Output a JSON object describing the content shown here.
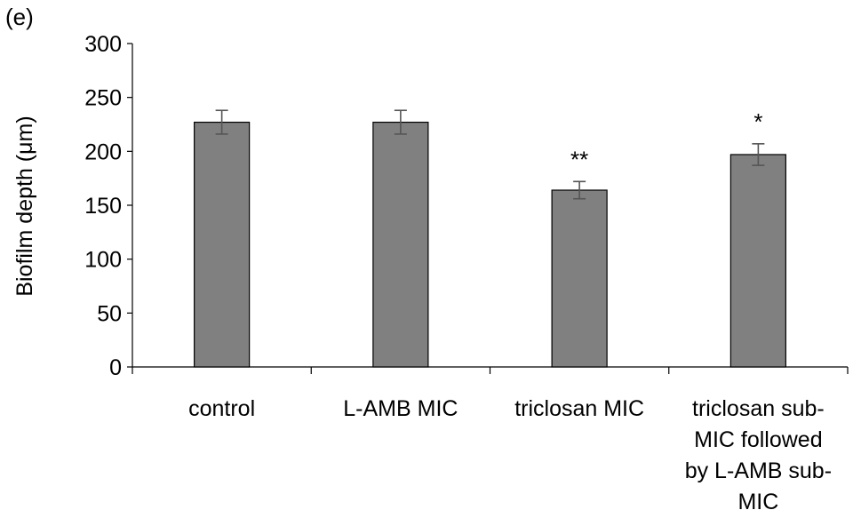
{
  "panel_label": "(e)",
  "chart_data": {
    "type": "bar",
    "title": "",
    "xlabel": "",
    "ylabel": "Biofilm depth (μm)",
    "ylim": [
      0,
      300
    ],
    "yticks": [
      0,
      50,
      100,
      150,
      200,
      250,
      300
    ],
    "categories": [
      [
        "control"
      ],
      [
        "L-AMB MIC"
      ],
      [
        "triclosan MIC"
      ],
      [
        "triclosan sub-",
        "MIC followed",
        "by L-AMB sub-",
        "MIC"
      ]
    ],
    "values": [
      227,
      227,
      164,
      197
    ],
    "errors": [
      11,
      11,
      8,
      10
    ],
    "significance": [
      "",
      "",
      "**",
      "*"
    ],
    "bar_color": "#808080",
    "grid": false,
    "legend": "none"
  }
}
